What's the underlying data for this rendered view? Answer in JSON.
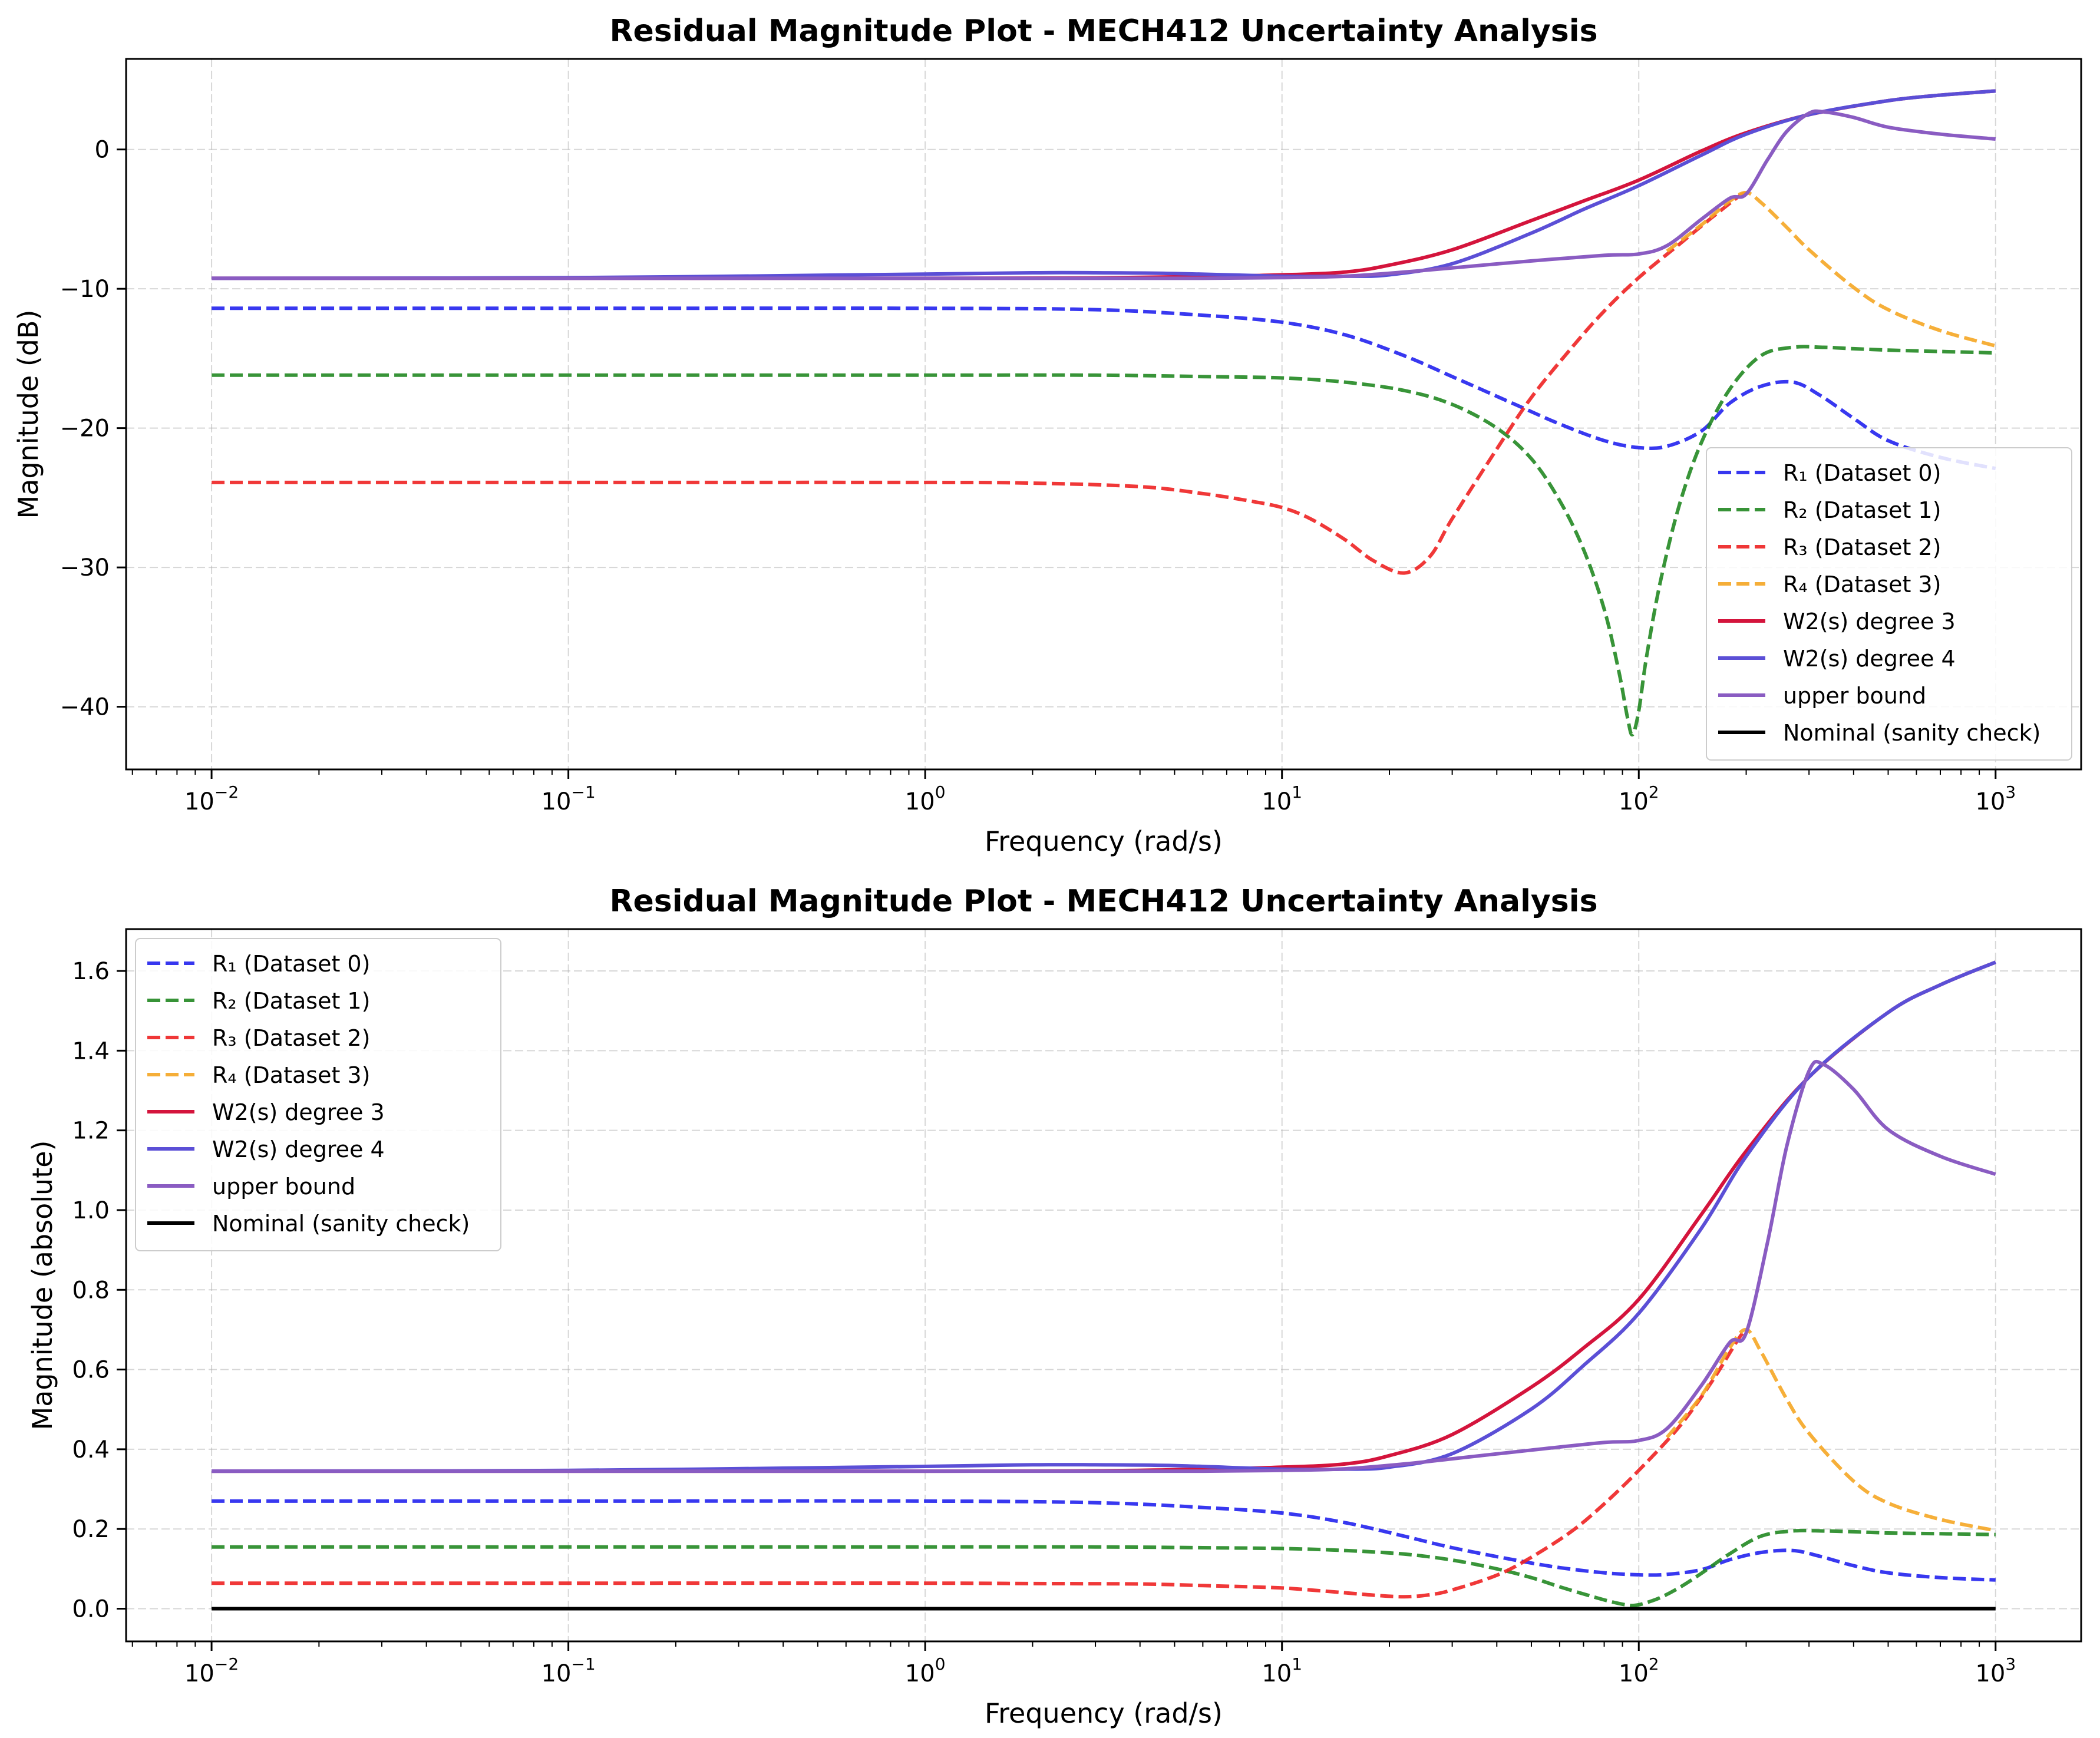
{
  "chart_data": [
    {
      "type": "line",
      "title": "Residual Magnitude Plot - MECH412 Uncertainty Analysis",
      "xlabel": "Frequency (rad/s)",
      "ylabel": "Magnitude (dB)",
      "xscale": "log",
      "xlim": [
        0.00576,
        1737
      ],
      "ylim": [
        -44.5,
        6.5
      ],
      "xticks": [
        {
          "value": 0.01,
          "base": "10",
          "exp": "−2"
        },
        {
          "value": 0.1,
          "base": "10",
          "exp": "−1"
        },
        {
          "value": 1,
          "base": "10",
          "exp": "0"
        },
        {
          "value": 10,
          "base": "10",
          "exp": "1"
        },
        {
          "value": 100,
          "base": "10",
          "exp": "2"
        },
        {
          "value": 1000,
          "base": "10",
          "exp": "3"
        }
      ],
      "yticks": [
        {
          "value": 0,
          "label": "0"
        },
        {
          "value": -10,
          "label": "−10"
        },
        {
          "value": -20,
          "label": "−20"
        },
        {
          "value": -30,
          "label": "−30"
        },
        {
          "value": -40,
          "label": "−40"
        }
      ],
      "grid": true,
      "legend_position": "lower right",
      "series": [
        {
          "name": "R₁ (Dataset 0)",
          "color": "#2222ee",
          "style": "dashed",
          "x": [
            0.01,
            0.1,
            1,
            3,
            6,
            10,
            15,
            22,
            30,
            45,
            60,
            80,
            100,
            120,
            150,
            180,
            220,
            270,
            320,
            400,
            500,
            700,
            1000
          ],
          "y": [
            -11.4,
            -11.4,
            -11.4,
            -11.5,
            -11.9,
            -12.4,
            -13.3,
            -14.8,
            -16.3,
            -18.3,
            -19.7,
            -20.9,
            -21.4,
            -21.3,
            -20.2,
            -18.2,
            -17,
            -16.7,
            -17.6,
            -19.3,
            -20.9,
            -22.1,
            -22.9
          ]
        },
        {
          "name": "R₂ (Dataset 1)",
          "color": "#228822",
          "style": "dashed",
          "x": [
            0.01,
            0.1,
            1,
            3,
            6,
            10,
            15,
            22,
            30,
            40,
            50,
            60,
            70,
            80,
            88,
            93,
            96,
            100,
            105,
            115,
            130,
            150,
            180,
            220,
            270,
            330,
            400,
            500,
            700,
            1000
          ],
          "y": [
            -16.2,
            -16.2,
            -16.2,
            -16.2,
            -16.3,
            -16.4,
            -16.7,
            -17.3,
            -18.3,
            -20,
            -22.2,
            -25.2,
            -28.7,
            -33,
            -37.5,
            -40.8,
            -42,
            -40.3,
            -36.5,
            -31,
            -25.5,
            -21,
            -17.2,
            -14.8,
            -14.2,
            -14.2,
            -14.3,
            -14.4,
            -14.5,
            -14.6
          ]
        },
        {
          "name": "R₃ (Dataset 2)",
          "color": "#ee2222",
          "style": "dashed",
          "x": [
            0.01,
            0.1,
            1,
            2,
            4,
            6,
            8,
            10,
            12,
            15,
            18,
            22,
            26,
            30,
            40,
            50,
            65,
            80,
            100,
            130,
            160,
            190,
            200
          ],
          "y": [
            -23.9,
            -23.9,
            -23.9,
            -23.95,
            -24.2,
            -24.7,
            -25.2,
            -25.7,
            -26.5,
            -28,
            -29.5,
            -30.4,
            -29.2,
            -26.5,
            -21.5,
            -17.8,
            -14.2,
            -11.6,
            -9.2,
            -6.8,
            -4.9,
            -3.4,
            -3.1
          ]
        },
        {
          "name": "R₄ (Dataset 3)",
          "color": "#f5a623",
          "style": "dashed",
          "x": [
            120,
            150,
            180,
            200,
            220,
            260,
            300,
            400,
            500,
            700,
            1000
          ],
          "y": [
            -7.3,
            -5.4,
            -3.7,
            -3.1,
            -3.8,
            -5.6,
            -7.2,
            -9.9,
            -11.5,
            -13,
            -14.1
          ]
        },
        {
          "name": "W2(s) degree 3",
          "color": "#d4143c",
          "style": "solid",
          "x": [
            0.01,
            0.1,
            1,
            3,
            6,
            10,
            15,
            20,
            30,
            50,
            70,
            100,
            150,
            200,
            300,
            500,
            700,
            1000
          ],
          "y": [
            -9.25,
            -9.25,
            -9.25,
            -9.22,
            -9.12,
            -9,
            -8.8,
            -8.3,
            -7.2,
            -5.1,
            -3.7,
            -2.2,
            -0.1,
            1.2,
            2.5,
            3.5,
            3.9,
            4.2
          ]
        },
        {
          "name": "W2(s) degree 4",
          "color": "#5b4fd6",
          "style": "solid",
          "x": [
            0.01,
            0.1,
            1,
            2,
            3,
            5,
            10,
            15,
            20,
            30,
            50,
            70,
            100,
            150,
            200,
            300,
            500,
            700,
            1000
          ],
          "y": [
            -9.25,
            -9.2,
            -8.95,
            -8.85,
            -8.85,
            -8.9,
            -9.1,
            -9.1,
            -9,
            -8.2,
            -6,
            -4.3,
            -2.6,
            -0.4,
            1.1,
            2.5,
            3.5,
            3.9,
            4.2
          ]
        },
        {
          "name": "upper bound",
          "color": "#8a5cc2",
          "style": "solid",
          "x": [
            0.01,
            0.1,
            1,
            3,
            6,
            10,
            15,
            22,
            30,
            50,
            80,
            100,
            120,
            150,
            180,
            200,
            230,
            260,
            300,
            330,
            400,
            500,
            700,
            1000
          ],
          "y": [
            -9.25,
            -9.25,
            -9.25,
            -9.25,
            -9.25,
            -9.2,
            -9.1,
            -8.8,
            -8.5,
            -8,
            -7.6,
            -7.5,
            -6.9,
            -5,
            -3.5,
            -3.2,
            -0.7,
            1.3,
            2.6,
            2.7,
            2.3,
            1.6,
            1.1,
            0.75
          ]
        },
        {
          "name": "Nominal (sanity check)",
          "color": "#000000",
          "style": "solid",
          "x": [],
          "y": []
        }
      ]
    },
    {
      "type": "line",
      "title": "Residual Magnitude Plot - MECH412 Uncertainty Analysis",
      "xlabel": "Frequency (rad/s)",
      "ylabel": "Magnitude (absolute)",
      "xscale": "log",
      "xlim": [
        0.00576,
        1737
      ],
      "ylim": [
        -0.082,
        1.705
      ],
      "xticks": [
        {
          "value": 0.01,
          "base": "10",
          "exp": "−2"
        },
        {
          "value": 0.1,
          "base": "10",
          "exp": "−1"
        },
        {
          "value": 1,
          "base": "10",
          "exp": "0"
        },
        {
          "value": 10,
          "base": "10",
          "exp": "1"
        },
        {
          "value": 100,
          "base": "10",
          "exp": "2"
        },
        {
          "value": 1000,
          "base": "10",
          "exp": "3"
        }
      ],
      "yticks": [
        {
          "value": 0,
          "label": "0.0"
        },
        {
          "value": 0.2,
          "label": "0.2"
        },
        {
          "value": 0.4,
          "label": "0.4"
        },
        {
          "value": 0.6,
          "label": "0.6"
        },
        {
          "value": 0.8,
          "label": "0.8"
        },
        {
          "value": 1.0,
          "label": "1.0"
        },
        {
          "value": 1.2,
          "label": "1.2"
        },
        {
          "value": 1.4,
          "label": "1.4"
        },
        {
          "value": 1.6,
          "label": "1.6"
        }
      ],
      "grid": true,
      "legend_position": "upper left",
      "series": [
        {
          "name": "R₁ (Dataset 0)",
          "color": "#2222ee",
          "style": "dashed",
          "x": [
            0.01,
            0.1,
            1,
            3,
            6,
            10,
            15,
            22,
            30,
            45,
            60,
            80,
            100,
            120,
            150,
            180,
            220,
            270,
            320,
            400,
            500,
            700,
            1000
          ],
          "y": [
            0.27,
            0.27,
            0.27,
            0.266,
            0.254,
            0.24,
            0.216,
            0.182,
            0.153,
            0.122,
            0.103,
            0.09,
            0.085,
            0.086,
            0.098,
            0.123,
            0.141,
            0.146,
            0.132,
            0.108,
            0.09,
            0.078,
            0.072
          ]
        },
        {
          "name": "R₂ (Dataset 1)",
          "color": "#228822",
          "style": "dashed",
          "x": [
            0.01,
            0.1,
            1,
            3,
            6,
            10,
            15,
            22,
            30,
            40,
            50,
            60,
            70,
            80,
            88,
            93,
            96,
            100,
            105,
            115,
            130,
            150,
            180,
            220,
            270,
            330,
            400,
            500,
            700,
            1000
          ],
          "y": [
            0.155,
            0.155,
            0.155,
            0.155,
            0.153,
            0.151,
            0.146,
            0.137,
            0.122,
            0.1,
            0.078,
            0.055,
            0.037,
            0.022,
            0.013,
            0.009,
            0.008,
            0.01,
            0.015,
            0.028,
            0.053,
            0.089,
            0.138,
            0.182,
            0.195,
            0.195,
            0.193,
            0.19,
            0.188,
            0.186
          ]
        },
        {
          "name": "R₃ (Dataset 2)",
          "color": "#ee2222",
          "style": "dashed",
          "x": [
            0.01,
            0.1,
            1,
            2,
            4,
            6,
            8,
            10,
            12,
            15,
            18,
            22,
            26,
            30,
            40,
            50,
            65,
            80,
            100,
            130,
            160,
            190,
            200
          ],
          "y": [
            0.064,
            0.064,
            0.064,
            0.063,
            0.062,
            0.058,
            0.055,
            0.052,
            0.047,
            0.04,
            0.034,
            0.03,
            0.035,
            0.047,
            0.084,
            0.129,
            0.195,
            0.263,
            0.347,
            0.457,
            0.569,
            0.676,
            0.7
          ]
        },
        {
          "name": "R₄ (Dataset 3)",
          "color": "#f5a623",
          "style": "dashed",
          "x": [
            120,
            150,
            180,
            200,
            220,
            260,
            300,
            400,
            500,
            700,
            1000
          ],
          "y": [
            0.43,
            0.535,
            0.655,
            0.7,
            0.645,
            0.525,
            0.44,
            0.32,
            0.265,
            0.224,
            0.196
          ]
        },
        {
          "name": "W2(s) degree 3",
          "color": "#d4143c",
          "style": "solid",
          "x": [
            0.01,
            0.1,
            1,
            3,
            6,
            10,
            15,
            20,
            30,
            50,
            70,
            100,
            150,
            200,
            300,
            500,
            700,
            1000
          ],
          "y": [
            0.345,
            0.345,
            0.345,
            0.346,
            0.35,
            0.355,
            0.363,
            0.384,
            0.437,
            0.556,
            0.654,
            0.776,
            0.99,
            1.148,
            1.334,
            1.496,
            1.565,
            1.622
          ]
        },
        {
          "name": "W2(s) degree 4",
          "color": "#5b4fd6",
          "style": "solid",
          "x": [
            0.01,
            0.1,
            1,
            2,
            3,
            5,
            10,
            15,
            20,
            30,
            50,
            70,
            100,
            150,
            200,
            300,
            500,
            700,
            1000
          ],
          "y": [
            0.345,
            0.347,
            0.357,
            0.361,
            0.361,
            0.359,
            0.35,
            0.35,
            0.355,
            0.389,
            0.501,
            0.61,
            0.741,
            0.955,
            1.135,
            1.334,
            1.496,
            1.565,
            1.622
          ]
        },
        {
          "name": "upper bound",
          "color": "#8a5cc2",
          "style": "solid",
          "x": [
            0.01,
            0.1,
            1,
            3,
            6,
            10,
            15,
            22,
            30,
            50,
            80,
            100,
            120,
            150,
            180,
            200,
            230,
            260,
            300,
            330,
            400,
            500,
            700,
            1000
          ],
          "y": [
            0.345,
            0.345,
            0.345,
            0.345,
            0.345,
            0.347,
            0.351,
            0.363,
            0.376,
            0.398,
            0.417,
            0.422,
            0.452,
            0.561,
            0.668,
            0.692,
            0.923,
            1.161,
            1.349,
            1.365,
            1.303,
            1.202,
            1.135,
            1.09
          ]
        },
        {
          "name": "Nominal (sanity check)",
          "color": "#000000",
          "style": "solid",
          "x": [
            0.01,
            1000
          ],
          "y": [
            0,
            0
          ]
        }
      ]
    }
  ]
}
